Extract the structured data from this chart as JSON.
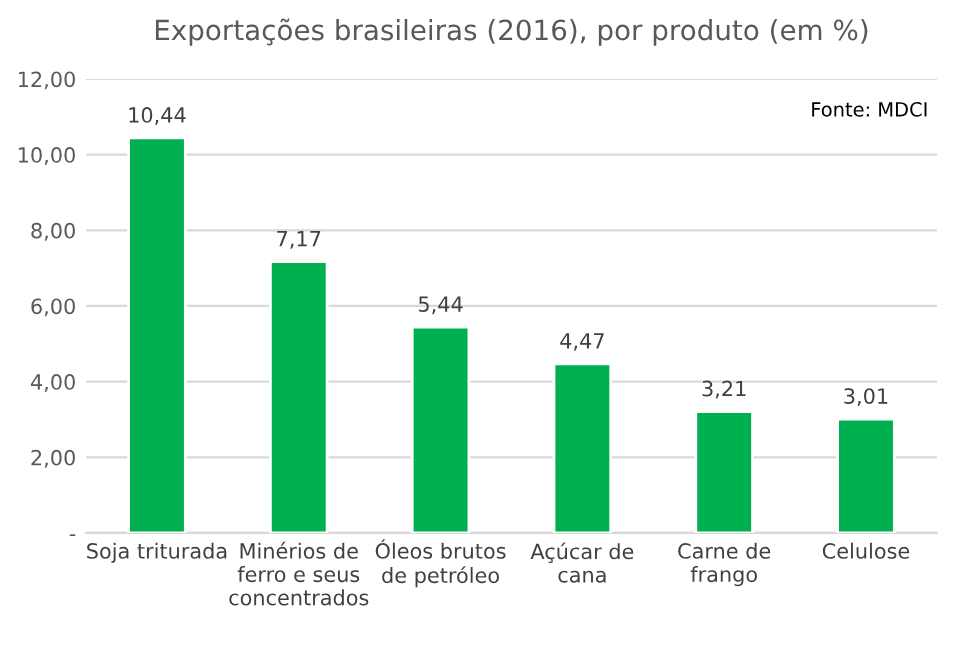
{
  "chart_data": {
    "type": "bar",
    "title": "Exportações brasileiras (2016), por produto (em %)",
    "categories": [
      "Soja triturada",
      "Minérios de\nferro e seus\nconcentrados",
      "Óleos brutos\nde petróleo",
      "Açúcar de\ncana",
      "Carne de\nfrango",
      "Celulose"
    ],
    "values": [
      10.44,
      7.17,
      5.44,
      4.47,
      3.21,
      3.01
    ],
    "value_labels": [
      "10,44",
      "7,17",
      "5,44",
      "4,47",
      "3,21",
      "3,01"
    ],
    "color": "#00b050",
    "ylim": [
      0,
      12
    ],
    "yticks": [
      {
        "value": 0,
        "label": "-"
      },
      {
        "value": 2,
        "label": "2,00"
      },
      {
        "value": 4,
        "label": "4,00"
      },
      {
        "value": 6,
        "label": "6,00"
      },
      {
        "value": 8,
        "label": "8,00"
      },
      {
        "value": 10,
        "label": "10,00"
      },
      {
        "value": 12,
        "label": "12,00"
      }
    ],
    "grid": "y",
    "annotations": [
      "Fonte: MDCI"
    ]
  }
}
